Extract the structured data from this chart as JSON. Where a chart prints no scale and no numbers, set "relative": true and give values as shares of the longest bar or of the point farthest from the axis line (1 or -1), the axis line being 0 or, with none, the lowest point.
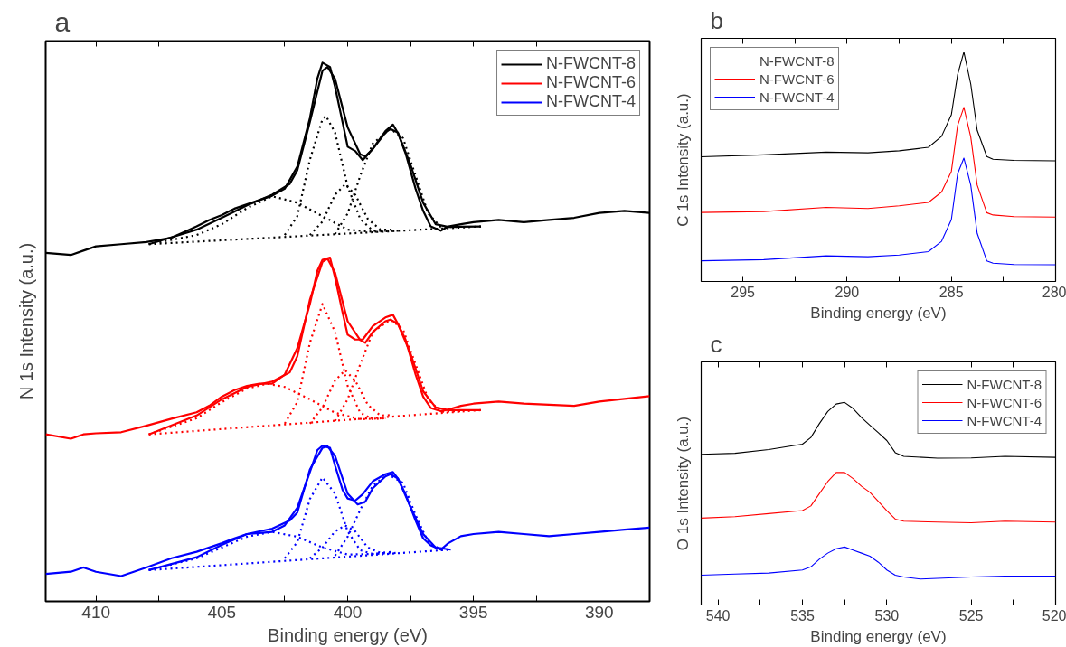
{
  "chart_data": [
    {
      "type": "line",
      "title": "a",
      "xlabel": "Binding energy (eV)",
      "ylabel": "N 1s Intensity (a.u.)",
      "relative": true,
      "xlim": [
        412,
        388
      ],
      "xticks": [
        410,
        {
          "value": 407.5,
          "label": null
        },
        405,
        {
          "value": 402.5,
          "label": null
        },
        400,
        {
          "value": 397.5,
          "label": null
        },
        395,
        {
          "value": 392.5,
          "label": null
        },
        390
      ],
      "legend": "top right",
      "grid": false,
      "series": [
        {
          "name": "N-FWCNT-8",
          "color": "#000000",
          "x": [
            412,
            411,
            410.5,
            410,
            409,
            408,
            407,
            406,
            405.5,
            405,
            404.5,
            404,
            403.5,
            403,
            402.5,
            402,
            401.5,
            401.2,
            401,
            400.7,
            400.5,
            400.2,
            400,
            399.7,
            399.4,
            399,
            398.5,
            398.2,
            398,
            397.7,
            397.3,
            397,
            396.7,
            396.3,
            396,
            395.5,
            395,
            394,
            393,
            392,
            391,
            390,
            389,
            388
          ],
          "values": [
            0.647,
            0.643,
            0.651,
            0.659,
            0.663,
            0.667,
            0.675,
            0.696,
            0.708,
            0.717,
            0.729,
            0.737,
            0.745,
            0.753,
            0.766,
            0.807,
            0.897,
            0.971,
            1.0,
            0.992,
            0.955,
            0.889,
            0.844,
            0.836,
            0.819,
            0.84,
            0.873,
            0.885,
            0.869,
            0.832,
            0.766,
            0.725,
            0.696,
            0.688,
            0.696,
            0.7,
            0.704,
            0.708,
            0.704,
            0.708,
            0.712,
            0.721,
            0.725,
            0.721
          ]
        },
        {
          "color": "#000000",
          "x": [
            407.9,
            406,
            405,
            404,
            403,
            402.3,
            402,
            401.5,
            401,
            400.8,
            400.5,
            400,
            399.5,
            399.3,
            399,
            398.5,
            398.3,
            398,
            397.5,
            397,
            396.5,
            396,
            394.7
          ],
          "values": [
            0.663,
            0.69,
            0.712,
            0.735,
            0.755,
            0.775,
            0.8,
            0.89,
            0.985,
            0.992,
            0.97,
            0.88,
            0.83,
            0.826,
            0.84,
            0.87,
            0.877,
            0.87,
            0.81,
            0.74,
            0.7,
            0.695,
            0.696
          ]
        },
        {
          "color": "#000000",
          "line_style": "dotted",
          "x": [
            407.9,
            394.7
          ],
          "values": [
            0.663,
            0.696
          ]
        },
        {
          "color": "#000000",
          "line_style": "dotted",
          "x": [
            407.9,
            406,
            405,
            404,
            403,
            402,
            401,
            400,
            399,
            398
          ],
          "values": [
            0.663,
            0.68,
            0.7,
            0.73,
            0.752,
            0.74,
            0.715,
            0.69,
            0.686,
            0.688
          ]
        },
        {
          "color": "#000000",
          "line_style": "dotted",
          "x": [
            402.5,
            402,
            401.5,
            401,
            400.86,
            400.5,
            400,
            399.5,
            399,
            398.5
          ],
          "values": [
            0.68,
            0.715,
            0.82,
            0.895,
            0.901,
            0.87,
            0.77,
            0.71,
            0.688,
            0.688
          ]
        },
        {
          "color": "#000000",
          "line_style": "dotted",
          "x": [
            401.5,
            401,
            400.5,
            400.1,
            399.7,
            399.2,
            398.7,
            398.2
          ],
          "values": [
            0.68,
            0.705,
            0.755,
            0.774,
            0.755,
            0.71,
            0.69,
            0.69
          ]
        },
        {
          "color": "#000000",
          "line_style": "dotted",
          "x": [
            400.5,
            400,
            399.5,
            399,
            398.3,
            397.8,
            397.3,
            396.8,
            396.3,
            395.5
          ],
          "values": [
            0.682,
            0.72,
            0.79,
            0.85,
            0.877,
            0.86,
            0.79,
            0.72,
            0.695,
            0.695
          ]
        },
        {
          "name": "N-FWCNT-6",
          "color": "#ff0000",
          "x": [
            412,
            411,
            410.5,
            410,
            409,
            408,
            407,
            406,
            405.5,
            405,
            404.5,
            404,
            403.5,
            403,
            402.5,
            402,
            401.5,
            401.2,
            401,
            400.7,
            400.5,
            400.2,
            400,
            399.7,
            399.4,
            399,
            398.5,
            398.2,
            398,
            397.7,
            397.3,
            397,
            396.7,
            396.3,
            396,
            395.5,
            395,
            394,
            393,
            392,
            391,
            390,
            389,
            388
          ],
          "values": [
            0.31,
            0.302,
            0.31,
            0.312,
            0.314,
            0.326,
            0.339,
            0.351,
            0.363,
            0.38,
            0.392,
            0.4,
            0.404,
            0.404,
            0.421,
            0.47,
            0.552,
            0.614,
            0.634,
            0.638,
            0.601,
            0.536,
            0.495,
            0.486,
            0.486,
            0.511,
            0.527,
            0.532,
            0.515,
            0.486,
            0.421,
            0.38,
            0.359,
            0.353,
            0.356,
            0.363,
            0.367,
            0.371,
            0.367,
            0.365,
            0.363,
            0.371,
            0.376,
            0.381
          ]
        },
        {
          "color": "#ff0000",
          "x": [
            407.9,
            406,
            405,
            404,
            403,
            402.3,
            402,
            401.5,
            401,
            400.8,
            400.5,
            400,
            399.5,
            399.3,
            399,
            398.5,
            398.3,
            398,
            397.5,
            397,
            396.5,
            396,
            394.7
          ],
          "values": [
            0.31,
            0.345,
            0.375,
            0.398,
            0.408,
            0.425,
            0.455,
            0.56,
            0.63,
            0.636,
            0.61,
            0.52,
            0.485,
            0.48,
            0.5,
            0.52,
            0.523,
            0.515,
            0.46,
            0.39,
            0.36,
            0.355,
            0.355
          ]
        },
        {
          "color": "#ff0000",
          "line_style": "dotted",
          "x": [
            407.9,
            394.7
          ],
          "values": [
            0.31,
            0.355
          ]
        },
        {
          "color": "#ff0000",
          "line_style": "dotted",
          "x": [
            407.9,
            406,
            405,
            404,
            403.2,
            402.5,
            401.5,
            400.5,
            399.5,
            398.5
          ],
          "values": [
            0.31,
            0.34,
            0.37,
            0.395,
            0.404,
            0.398,
            0.375,
            0.35,
            0.338,
            0.34
          ]
        },
        {
          "color": "#ff0000",
          "line_style": "dotted",
          "x": [
            402.5,
            402,
            401.5,
            401,
            400.5,
            400,
            399.5,
            399,
            398.5
          ],
          "values": [
            0.33,
            0.37,
            0.48,
            0.552,
            0.5,
            0.4,
            0.35,
            0.338,
            0.34
          ]
        },
        {
          "color": "#ff0000",
          "line_style": "dotted",
          "x": [
            401.5,
            401,
            400.5,
            400.1,
            399.7,
            399.2,
            398.7,
            398.2
          ],
          "values": [
            0.33,
            0.36,
            0.41,
            0.429,
            0.41,
            0.365,
            0.345,
            0.346
          ]
        },
        {
          "color": "#ff0000",
          "line_style": "dotted",
          "x": [
            400.5,
            400,
            399.5,
            399,
            398.3,
            397.8,
            397.3,
            396.8,
            396.3,
            395.5
          ],
          "values": [
            0.335,
            0.375,
            0.44,
            0.5,
            0.523,
            0.505,
            0.44,
            0.375,
            0.352,
            0.353
          ]
        },
        {
          "name": "N-FWCNT-4",
          "color": "#0000ff",
          "x": [
            412,
            411,
            410.5,
            410,
            409,
            408,
            407,
            406,
            405.5,
            405,
            404.5,
            404,
            403.5,
            403,
            402.5,
            402,
            401.5,
            401.2,
            401,
            400.7,
            400.5,
            400.2,
            400,
            399.7,
            399.4,
            399,
            398.5,
            398.2,
            398,
            397.7,
            397.3,
            397,
            396.7,
            396.3,
            396,
            395.5,
            395,
            394,
            393,
            392,
            391,
            390,
            389,
            388
          ],
          "values": [
            0.051,
            0.055,
            0.063,
            0.055,
            0.047,
            0.063,
            0.08,
            0.092,
            0.1,
            0.108,
            0.117,
            0.125,
            0.127,
            0.129,
            0.141,
            0.174,
            0.24,
            0.281,
            0.289,
            0.285,
            0.252,
            0.207,
            0.191,
            0.187,
            0.199,
            0.223,
            0.236,
            0.24,
            0.228,
            0.199,
            0.15,
            0.117,
            0.104,
            0.096,
            0.108,
            0.121,
            0.125,
            0.129,
            0.125,
            0.121,
            0.125,
            0.129,
            0.133,
            0.137
          ]
        },
        {
          "color": "#0000ff",
          "x": [
            407.9,
            406,
            405,
            404,
            403,
            402.3,
            402,
            401.5,
            401,
            400.8,
            400.5,
            400,
            399.6,
            399.3,
            399,
            398.5,
            398.3,
            398,
            397.5,
            397,
            396.5,
            395.9
          ],
          "values": [
            0.058,
            0.082,
            0.105,
            0.125,
            0.135,
            0.15,
            0.165,
            0.245,
            0.285,
            0.288,
            0.27,
            0.2,
            0.18,
            0.185,
            0.21,
            0.232,
            0.236,
            0.228,
            0.175,
            0.125,
            0.1,
            0.096
          ]
        },
        {
          "color": "#0000ff",
          "line_style": "dotted",
          "x": [
            407.9,
            395.9
          ],
          "values": [
            0.058,
            0.096
          ]
        },
        {
          "color": "#0000ff",
          "line_style": "dotted",
          "x": [
            407.9,
            406,
            405,
            404,
            403,
            402,
            401,
            400,
            399,
            398
          ],
          "values": [
            0.058,
            0.08,
            0.1,
            0.12,
            0.129,
            0.12,
            0.1,
            0.087,
            0.088,
            0.09
          ]
        },
        {
          "color": "#0000ff",
          "line_style": "dotted",
          "x": [
            402.5,
            402,
            401.5,
            401,
            400.5,
            400,
            399.5,
            399,
            398.5
          ],
          "values": [
            0.08,
            0.11,
            0.19,
            0.23,
            0.2,
            0.13,
            0.095,
            0.088,
            0.09
          ]
        },
        {
          "color": "#0000ff",
          "line_style": "dotted",
          "x": [
            401.5,
            401,
            400.5,
            400.1,
            399.7,
            399.2,
            398.7,
            398.2
          ],
          "values": [
            0.08,
            0.1,
            0.13,
            0.141,
            0.13,
            0.1,
            0.09,
            0.092
          ]
        },
        {
          "color": "#0000ff",
          "line_style": "dotted",
          "x": [
            400.5,
            400,
            399.5,
            399,
            398.4,
            397.8,
            397.3,
            396.8,
            396.3,
            395.9
          ],
          "values": [
            0.085,
            0.12,
            0.17,
            0.215,
            0.236,
            0.22,
            0.16,
            0.11,
            0.096,
            0.096
          ]
        }
      ]
    },
    {
      "type": "line",
      "title": "b",
      "xlabel": "Binding energy (eV)",
      "ylabel": "C 1s Intensity (a.u.)",
      "relative": true,
      "xlim": [
        297,
        280
      ],
      "xticks": [
        295,
        {
          "value": 292.5,
          "label": null
        },
        290,
        {
          "value": 287.5,
          "label": null
        },
        285,
        {
          "value": 282.5,
          "label": null
        },
        280
      ],
      "legend": "top left",
      "grid": false,
      "series": [
        {
          "name": "N-FWCNT-8",
          "color": "#000000",
          "x": [
            297,
            294,
            291,
            289,
            287.5,
            286.1,
            285.47,
            285,
            284.7,
            284.4,
            284.07,
            283.76,
            283.3,
            283,
            282,
            280
          ],
          "values": [
            0.544,
            0.552,
            0.564,
            0.561,
            0.57,
            0.585,
            0.633,
            0.727,
            0.902,
            1.0,
            0.861,
            0.659,
            0.545,
            0.533,
            0.528,
            0.526
          ]
        },
        {
          "name": "N-FWCNT-6",
          "color": "#ff0000",
          "x": [
            297,
            294,
            291,
            289,
            287.5,
            286.1,
            285.47,
            285,
            284.7,
            284.4,
            284.07,
            283.76,
            283.3,
            283,
            282,
            280
          ],
          "values": [
            0.301,
            0.305,
            0.323,
            0.318,
            0.33,
            0.345,
            0.39,
            0.48,
            0.68,
            0.759,
            0.63,
            0.42,
            0.3,
            0.29,
            0.283,
            0.281
          ]
        },
        {
          "name": "N-FWCNT-4",
          "color": "#0000ff",
          "x": [
            297,
            294,
            291,
            289,
            287.5,
            286.1,
            285.47,
            285,
            284.7,
            284.4,
            284.07,
            283.76,
            283.3,
            283,
            282,
            280
          ],
          "values": [
            0.09,
            0.095,
            0.112,
            0.108,
            0.115,
            0.13,
            0.175,
            0.27,
            0.47,
            0.538,
            0.42,
            0.21,
            0.09,
            0.08,
            0.074,
            0.073
          ]
        }
      ]
    },
    {
      "type": "line",
      "title": "c",
      "xlabel": "Binding energy (eV)",
      "ylabel": "O 1s Intensity (a.u.)",
      "relative": true,
      "xlim": [
        541,
        520
      ],
      "xticks": [
        540,
        {
          "value": 537.5,
          "label": null
        },
        535,
        {
          "value": 532.5,
          "label": null
        },
        530,
        {
          "value": 527.5,
          "label": null
        },
        525,
        {
          "value": 522.5,
          "label": null
        },
        520
      ],
      "legend": "top right",
      "grid": false,
      "series": [
        {
          "name": "N-FWCNT-8",
          "color": "#000000",
          "x": [
            541,
            539,
            537,
            535,
            534.5,
            534,
            533.5,
            533,
            532.5,
            532,
            531.5,
            531,
            530.5,
            530,
            529.5,
            529,
            527,
            525,
            523,
            520
          ],
          "values": [
            0.744,
            0.749,
            0.767,
            0.794,
            0.827,
            0.895,
            0.955,
            0.992,
            1.0,
            0.97,
            0.925,
            0.887,
            0.85,
            0.812,
            0.752,
            0.734,
            0.725,
            0.726,
            0.734,
            0.729
          ]
        },
        {
          "name": "N-FWCNT-6",
          "color": "#ff0000",
          "x": [
            541,
            539,
            537,
            535,
            534.5,
            534,
            533.5,
            533,
            532.5,
            532,
            531.5,
            531,
            530.5,
            530,
            529.5,
            529,
            527,
            525,
            523,
            520
          ],
          "values": [
            0.429,
            0.436,
            0.451,
            0.466,
            0.489,
            0.549,
            0.609,
            0.654,
            0.654,
            0.624,
            0.586,
            0.556,
            0.511,
            0.466,
            0.424,
            0.414,
            0.409,
            0.406,
            0.414,
            0.409
          ]
        },
        {
          "name": "N-FWCNT-4",
          "color": "#0000ff",
          "x": [
            541,
            539,
            537,
            535,
            534.5,
            534,
            533.5,
            533,
            532.5,
            532,
            531.5,
            531,
            530.5,
            530,
            529.5,
            529,
            528,
            525,
            523,
            520
          ],
          "values": [
            0.147,
            0.153,
            0.158,
            0.173,
            0.188,
            0.226,
            0.256,
            0.278,
            0.286,
            0.271,
            0.256,
            0.241,
            0.211,
            0.173,
            0.147,
            0.138,
            0.128,
            0.138,
            0.143,
            0.143
          ]
        }
      ]
    }
  ]
}
